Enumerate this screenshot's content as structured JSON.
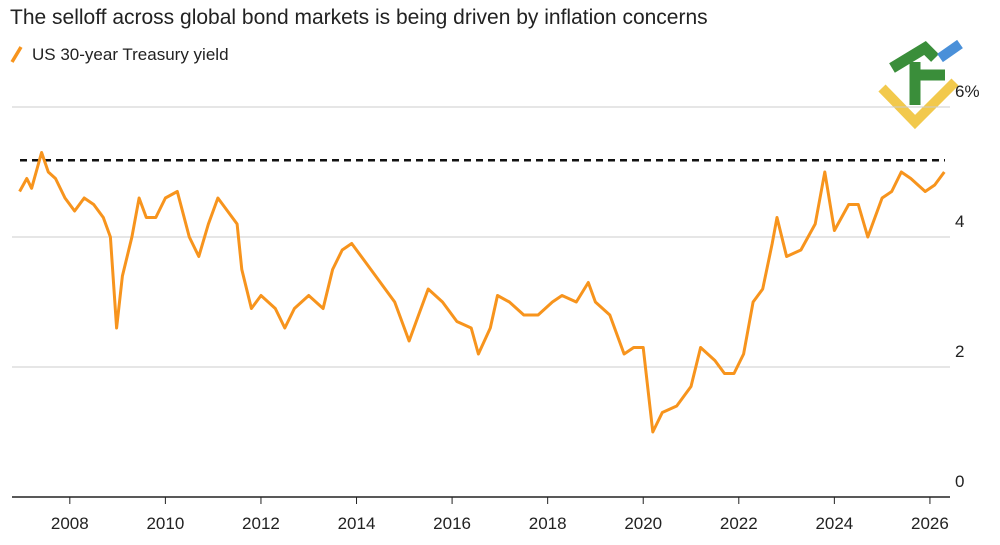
{
  "chart_data": {
    "type": "line",
    "title": "The selloff across global bond markets is being driven by inflation concerns",
    "series": [
      {
        "name": "US 30-year Treasury yield",
        "color": "#f7941d",
        "x": [
          2006.95,
          2007.1,
          2007.2,
          2007.41,
          2007.55,
          2007.7,
          2007.9,
          2008.1,
          2008.3,
          2008.5,
          2008.7,
          2008.85,
          2008.98,
          2009.1,
          2009.3,
          2009.45,
          2009.6,
          2009.8,
          2010.0,
          2010.25,
          2010.5,
          2010.7,
          2010.9,
          2011.1,
          2011.3,
          2011.5,
          2011.6,
          2011.8,
          2012.0,
          2012.3,
          2012.5,
          2012.7,
          2013.0,
          2013.3,
          2013.5,
          2013.7,
          2013.9,
          2014.2,
          2014.5,
          2014.8,
          2015.1,
          2015.3,
          2015.5,
          2015.8,
          2016.1,
          2016.4,
          2016.55,
          2016.8,
          2016.95,
          2017.2,
          2017.5,
          2017.8,
          2018.1,
          2018.3,
          2018.6,
          2018.85,
          2019.0,
          2019.3,
          2019.6,
          2019.8,
          2020.0,
          2020.2,
          2020.4,
          2020.7,
          2021.0,
          2021.2,
          2021.5,
          2021.7,
          2021.9,
          2022.1,
          2022.3,
          2022.5,
          2022.7,
          2022.8,
          2023.0,
          2023.3,
          2023.6,
          2023.8,
          2024.0,
          2024.3,
          2024.5,
          2024.7,
          2025.0,
          2025.2,
          2025.4,
          2025.6,
          2025.9,
          2026.1,
          2026.3
        ],
        "values": [
          4.7,
          4.9,
          4.75,
          5.3,
          5.0,
          4.9,
          4.6,
          4.4,
          4.6,
          4.5,
          4.3,
          4.0,
          2.6,
          3.4,
          4.0,
          4.6,
          4.3,
          4.3,
          4.6,
          4.7,
          4.0,
          3.7,
          4.2,
          4.6,
          4.4,
          4.2,
          3.5,
          2.9,
          3.1,
          2.9,
          2.6,
          2.9,
          3.1,
          2.9,
          3.5,
          3.8,
          3.9,
          3.6,
          3.3,
          3.0,
          2.4,
          2.8,
          3.2,
          3.0,
          2.7,
          2.6,
          2.2,
          2.6,
          3.1,
          3.0,
          2.8,
          2.8,
          3.0,
          3.1,
          3.0,
          3.3,
          3.0,
          2.8,
          2.2,
          2.3,
          2.3,
          1.0,
          1.3,
          1.4,
          1.7,
          2.3,
          2.1,
          1.9,
          1.9,
          2.2,
          3.0,
          3.2,
          3.9,
          4.3,
          3.7,
          3.8,
          4.2,
          5.0,
          4.1,
          4.5,
          4.5,
          4.0,
          4.6,
          4.7,
          5.0,
          4.9,
          4.7,
          4.8,
          5.0
        ]
      }
    ],
    "reference_line": 5.18,
    "xlim": [
      2006.79,
      2026.42
    ],
    "xticks": [
      2008,
      2010,
      2012,
      2014,
      2016,
      2018,
      2020,
      2022,
      2024,
      2026
    ],
    "ylim": [
      0,
      6
    ],
    "yticks": [
      0,
      2,
      4,
      {
        "value": 6,
        "label": "6%"
      }
    ],
    "grid": true
  }
}
